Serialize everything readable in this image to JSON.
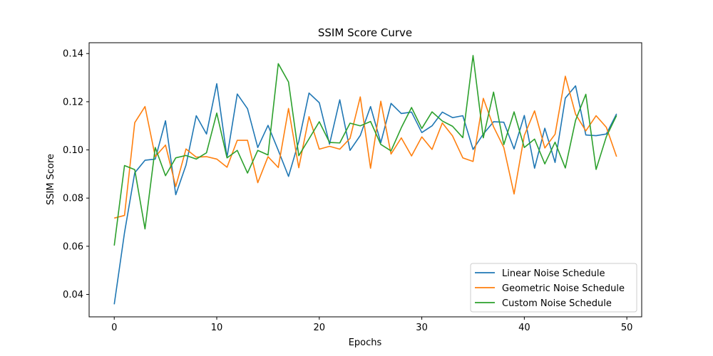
{
  "chart_data": {
    "type": "line",
    "title": "SSIM Score Curve",
    "xlabel": "Epochs",
    "ylabel": "SSIM Score",
    "xlim": [
      -2.45,
      51.45
    ],
    "ylim": [
      0.0307,
      0.1445
    ],
    "x_ticks": [
      0,
      10,
      20,
      30,
      40,
      50
    ],
    "y_ticks": [
      0.04,
      0.06,
      0.08,
      0.1,
      0.12,
      0.14
    ],
    "y_tick_labels": [
      "0.04",
      "0.06",
      "0.08",
      "0.10",
      "0.12",
      "0.14"
    ],
    "grid": false,
    "legend_position": "lower-right",
    "x": [
      0,
      1,
      2,
      3,
      4,
      5,
      6,
      7,
      8,
      9,
      10,
      11,
      12,
      13,
      14,
      15,
      16,
      17,
      18,
      19,
      20,
      21,
      22,
      23,
      24,
      25,
      26,
      27,
      28,
      29,
      30,
      31,
      32,
      33,
      34,
      35,
      36,
      37,
      38,
      39,
      40,
      41,
      42,
      43,
      44,
      45,
      46,
      47,
      48,
      49
    ],
    "series": [
      {
        "name": "Linear Noise Schedule",
        "color": "#1f77b4",
        "values": [
          0.0359,
          0.0656,
          0.0905,
          0.0957,
          0.0962,
          0.1121,
          0.0814,
          0.0937,
          0.1142,
          0.1066,
          0.1275,
          0.0969,
          0.1232,
          0.1171,
          0.101,
          0.1102,
          0.0998,
          0.089,
          0.1035,
          0.1236,
          0.1196,
          0.1024,
          0.1208,
          0.0998,
          0.106,
          0.118,
          0.103,
          0.1193,
          0.1151,
          0.1157,
          0.1072,
          0.11,
          0.1157,
          0.1134,
          0.1142,
          0.1002,
          0.1066,
          0.1117,
          0.1115,
          0.1004,
          0.1143,
          0.0924,
          0.109,
          0.0948,
          0.1215,
          0.1266,
          0.1062,
          0.1059,
          0.1066,
          0.115
        ]
      },
      {
        "name": "Geometric Noise Schedule",
        "color": "#ff7f0e",
        "values": [
          0.0717,
          0.0728,
          0.1113,
          0.118,
          0.0972,
          0.102,
          0.0848,
          0.1004,
          0.097,
          0.0972,
          0.0962,
          0.0928,
          0.104,
          0.104,
          0.0864,
          0.0972,
          0.0927,
          0.1172,
          0.0926,
          0.1138,
          0.1003,
          0.1015,
          0.1003,
          0.1048,
          0.122,
          0.0924,
          0.1202,
          0.0983,
          0.105,
          0.0975,
          0.1054,
          0.1002,
          0.1112,
          0.1058,
          0.0967,
          0.0952,
          0.1214,
          0.1096,
          0.101,
          0.0817,
          0.106,
          0.1162,
          0.1008,
          0.1065,
          0.1306,
          0.1148,
          0.1079,
          0.1142,
          0.1094,
          0.0972
        ]
      },
      {
        "name": "Custom Noise Schedule",
        "color": "#2ca02c",
        "values": [
          0.0603,
          0.0935,
          0.0918,
          0.0672,
          0.101,
          0.0893,
          0.0967,
          0.0977,
          0.0962,
          0.0988,
          0.1153,
          0.0967,
          0.0998,
          0.0904,
          0.0998,
          0.0979,
          0.1358,
          0.1282,
          0.0976,
          0.1046,
          0.1117,
          0.1031,
          0.1029,
          0.1111,
          0.11,
          0.1118,
          0.1023,
          0.0996,
          0.1092,
          0.1176,
          0.1089,
          0.1158,
          0.112,
          0.1098,
          0.1051,
          0.1392,
          0.105,
          0.124,
          0.1022,
          0.1158,
          0.101,
          0.1045,
          0.0942,
          0.1032,
          0.0925,
          0.1123,
          0.1231,
          0.0919,
          0.1055,
          0.1143
        ]
      }
    ]
  }
}
